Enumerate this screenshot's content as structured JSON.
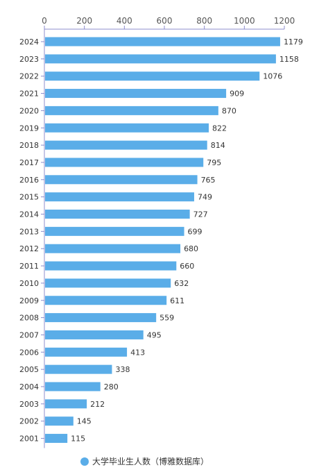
{
  "chart_data": {
    "type": "bar",
    "orientation": "horizontal",
    "title": "",
    "xlabel": "",
    "ylabel": "",
    "xlim": [
      0,
      1200
    ],
    "x_ticks": [
      0,
      200,
      400,
      600,
      800,
      1000,
      1200
    ],
    "x_axis_position": "top",
    "grid": false,
    "categories": [
      "2024",
      "2023",
      "2022",
      "2021",
      "2020",
      "2019",
      "2018",
      "2017",
      "2016",
      "2015",
      "2014",
      "2013",
      "2012",
      "2011",
      "2010",
      "2009",
      "2008",
      "2007",
      "2006",
      "2005",
      "2004",
      "2003",
      "2002",
      "2001"
    ],
    "series": [
      {
        "name": "大学毕业生人数（博雅数据库）",
        "values": [
          1179,
          1158,
          1076,
          909,
          870,
          822,
          814,
          795,
          765,
          749,
          727,
          699,
          680,
          660,
          632,
          611,
          559,
          495,
          413,
          338,
          280,
          212,
          145,
          115
        ],
        "color": "#5aade8"
      }
    ],
    "legend": {
      "position": "bottom-center",
      "items": [
        {
          "label": "大学毕业生人数（博雅数据库）",
          "color": "#5aade8"
        }
      ]
    },
    "axis_color": "#8c8ccc"
  }
}
